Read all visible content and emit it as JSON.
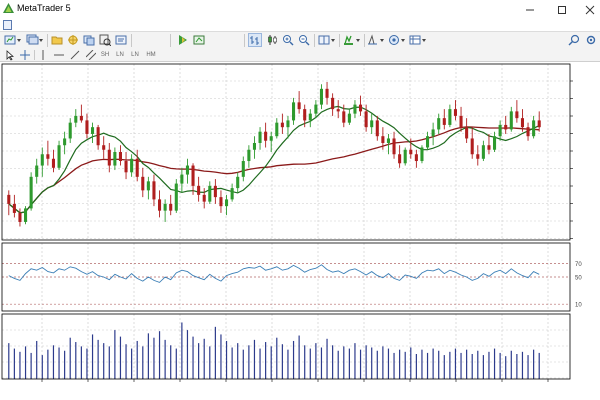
{
  "window": {
    "title": "MetaTrader 5",
    "controls": [
      "minimize-icon",
      "maximize-icon",
      "close-icon"
    ]
  },
  "menubar": {
    "icon": "document-icon"
  },
  "toolbar": {
    "main_icons": [
      "new-chart-icon",
      "profiles-icon",
      "open-folder-icon",
      "navigator-icon",
      "market-watch-icon",
      "data-window-icon",
      "strategy-tester-icon",
      "algo-trading-icon",
      "new-order-icon",
      "bar-chart-icon",
      "candlestick-icon",
      "line-chart-icon",
      "zoom-in-icon",
      "zoom-out-icon",
      "tile-windows-icon",
      "autoscroll-icon",
      "chart-shift-icon",
      "indicators-icon",
      "periods-icon",
      "templates-icon",
      "search-icon",
      "settings-icon"
    ],
    "drawing_tools": {
      "cursor": "cursor-icon",
      "crosshair": "crosshair-icon",
      "vertical_line": "vertical-line-icon",
      "horizontal_line": "horizontal-line-icon",
      "trendline": "trendline-icon",
      "channel": "equidistant-channel-icon",
      "labels": [
        "SH",
        "LN",
        "LN",
        "HM"
      ]
    }
  },
  "chart": {
    "background": "#ffffff",
    "grid": true,
    "candle_up_color": "#2e9a2e",
    "candle_down_color": "#b01e1e",
    "ma_fast_color": "#1f6b1f",
    "ma_slow_color": "#8b1a1a",
    "rsi_color": "#3b7fb6",
    "volume_color": "#2c3a8c",
    "rsi_levels": [
      "70",
      "50",
      "10"
    ]
  },
  "chart_data": {
    "type": "candlestick",
    "candles": [
      [
        50,
        52,
        41,
        46
      ],
      [
        46,
        50,
        40,
        42
      ],
      [
        42,
        44,
        36,
        38
      ],
      [
        38,
        45,
        37,
        44
      ],
      [
        44,
        60,
        43,
        58
      ],
      [
        58,
        66,
        55,
        63
      ],
      [
        63,
        71,
        58,
        68
      ],
      [
        68,
        74,
        63,
        66
      ],
      [
        66,
        70,
        60,
        62
      ],
      [
        62,
        74,
        61,
        72
      ],
      [
        72,
        78,
        68,
        75
      ],
      [
        75,
        84,
        73,
        82
      ],
      [
        82,
        88,
        80,
        85
      ],
      [
        85,
        90,
        82,
        83
      ],
      [
        83,
        86,
        75,
        77
      ],
      [
        77,
        82,
        73,
        80
      ],
      [
        80,
        81,
        70,
        72
      ],
      [
        72,
        76,
        66,
        70
      ],
      [
        70,
        73,
        60,
        63
      ],
      [
        63,
        71,
        61,
        69
      ],
      [
        69,
        72,
        63,
        65
      ],
      [
        65,
        69,
        57,
        60
      ],
      [
        60,
        68,
        58,
        66
      ],
      [
        66,
        70,
        56,
        58
      ],
      [
        58,
        62,
        49,
        52
      ],
      [
        52,
        58,
        48,
        56
      ],
      [
        56,
        59,
        45,
        48
      ],
      [
        48,
        52,
        40,
        43
      ],
      [
        43,
        48,
        38,
        46
      ],
      [
        46,
        50,
        41,
        43
      ],
      [
        43,
        57,
        42,
        55
      ],
      [
        55,
        62,
        51,
        59
      ],
      [
        59,
        66,
        55,
        63
      ],
      [
        63,
        64,
        50,
        54
      ],
      [
        54,
        58,
        47,
        50
      ],
      [
        50,
        53,
        44,
        47
      ],
      [
        47,
        56,
        46,
        54
      ],
      [
        54,
        57,
        46,
        49
      ],
      [
        49,
        52,
        42,
        45
      ],
      [
        45,
        50,
        41,
        48
      ],
      [
        48,
        55,
        47,
        53
      ],
      [
        53,
        60,
        51,
        58
      ],
      [
        58,
        67,
        56,
        65
      ],
      [
        65,
        72,
        62,
        70
      ],
      [
        70,
        76,
        66,
        73
      ],
      [
        73,
        80,
        70,
        78
      ],
      [
        78,
        82,
        71,
        74
      ],
      [
        74,
        78,
        69,
        76
      ],
      [
        76,
        84,
        75,
        82
      ],
      [
        82,
        86,
        77,
        80
      ],
      [
        80,
        85,
        75,
        83
      ],
      [
        83,
        93,
        81,
        91
      ],
      [
        91,
        96,
        86,
        88
      ],
      [
        88,
        90,
        80,
        83
      ],
      [
        83,
        88,
        80,
        86
      ],
      [
        86,
        92,
        84,
        90
      ],
      [
        90,
        99,
        88,
        97
      ],
      [
        97,
        100,
        90,
        93
      ],
      [
        93,
        95,
        85,
        88
      ],
      [
        88,
        92,
        84,
        87
      ],
      [
        87,
        90,
        80,
        82
      ],
      [
        82,
        88,
        81,
        86
      ],
      [
        86,
        92,
        84,
        90
      ],
      [
        90,
        94,
        85,
        87
      ],
      [
        87,
        90,
        78,
        80
      ],
      [
        80,
        86,
        77,
        83
      ],
      [
        83,
        85,
        74,
        76
      ],
      [
        76,
        80,
        70,
        73
      ],
      [
        73,
        77,
        68,
        75
      ],
      [
        75,
        78,
        66,
        68
      ],
      [
        68,
        72,
        62,
        64
      ],
      [
        64,
        71,
        63,
        70
      ],
      [
        70,
        75,
        66,
        68
      ],
      [
        68,
        70,
        62,
        65
      ],
      [
        65,
        72,
        64,
        71
      ],
      [
        71,
        78,
        70,
        76
      ],
      [
        76,
        82,
        72,
        79
      ],
      [
        79,
        86,
        77,
        84
      ],
      [
        84,
        88,
        79,
        81
      ],
      [
        81,
        90,
        80,
        88
      ],
      [
        88,
        92,
        83,
        85
      ],
      [
        85,
        89,
        78,
        80
      ],
      [
        80,
        84,
        73,
        75
      ],
      [
        75,
        80,
        66,
        68
      ],
      [
        68,
        72,
        63,
        66
      ],
      [
        66,
        74,
        65,
        72
      ],
      [
        72,
        77,
        68,
        70
      ],
      [
        70,
        78,
        69,
        76
      ],
      [
        76,
        83,
        74,
        81
      ],
      [
        81,
        85,
        77,
        79
      ],
      [
        79,
        89,
        78,
        87
      ],
      [
        87,
        92,
        82,
        84
      ],
      [
        84,
        88,
        78,
        80
      ],
      [
        80,
        82,
        74,
        76
      ],
      [
        76,
        85,
        75,
        83
      ],
      [
        83,
        87,
        78,
        80
      ]
    ],
    "volume": [
      33,
      28,
      25,
      30,
      24,
      35,
      22,
      27,
      31,
      29,
      26,
      38,
      34,
      30,
      28,
      41,
      36,
      33,
      30,
      45,
      39,
      32,
      28,
      35,
      30,
      42,
      38,
      44,
      36,
      31,
      28,
      52,
      45,
      39,
      33,
      37,
      30,
      48,
      41,
      35,
      29,
      33,
      27,
      31,
      36,
      28,
      34,
      30,
      38,
      32,
      27,
      35,
      40,
      31,
      28,
      33,
      29,
      37,
      31,
      26,
      30,
      28,
      33,
      27,
      31,
      29,
      26,
      30,
      28,
      24,
      27,
      25,
      29,
      23,
      27,
      24,
      28,
      26,
      22,
      25,
      28,
      24,
      27,
      23,
      26,
      22,
      25,
      28,
      24,
      21,
      26,
      23,
      25,
      22,
      27,
      24
    ],
    "rsi": [
      52,
      48,
      45,
      55,
      62,
      60,
      64,
      58,
      56,
      62,
      60,
      65,
      63,
      58,
      54,
      58,
      52,
      50,
      46,
      54,
      50,
      47,
      55,
      48,
      44,
      50,
      45,
      42,
      50,
      46,
      56,
      60,
      58,
      52,
      49,
      46,
      54,
      48,
      44,
      52,
      55,
      57,
      62,
      64,
      63,
      66,
      60,
      62,
      65,
      60,
      62,
      67,
      63,
      57,
      61,
      63,
      68,
      61,
      57,
      59,
      55,
      60,
      62,
      58,
      53,
      58,
      52,
      49,
      55,
      48,
      45,
      53,
      51,
      48,
      56,
      60,
      59,
      62,
      55,
      60,
      57,
      53,
      50,
      45,
      48,
      55,
      51,
      57,
      60,
      55,
      62,
      56,
      52,
      49,
      58,
      54
    ]
  }
}
